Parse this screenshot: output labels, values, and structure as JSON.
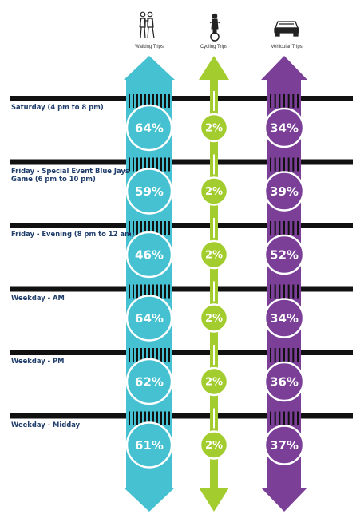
{
  "chart_data": {
    "type": "table",
    "modes": [
      {
        "name": "Walking Trips",
        "icon": "pedestrians-icon",
        "color": "#45c1d1"
      },
      {
        "name": "Cycling Trips",
        "icon": "cyclist-icon",
        "color": "#a3cc2e"
      },
      {
        "name": "Vehicular Trips",
        "icon": "car-icon",
        "color": "#7b3f98"
      }
    ],
    "rows": [
      {
        "label": "Saturday (4 pm to 8 pm)",
        "values": [
          "64%",
          "2%",
          "34%"
        ]
      },
      {
        "label": "Friday - Special Event Blue Jays Game (6 pm to 10 pm)",
        "values": [
          "59%",
          "2%",
          "39%"
        ]
      },
      {
        "label": "Friday - Evening (8 pm to 12 am)",
        "values": [
          "46%",
          "2%",
          "52%"
        ]
      },
      {
        "label": "Weekday - AM",
        "values": [
          "64%",
          "2%",
          "34%"
        ]
      },
      {
        "label": "Weekday - PM",
        "values": [
          "62%",
          "2%",
          "36%"
        ]
      },
      {
        "label": "Weekday - Midday",
        "values": [
          "61%",
          "2%",
          "37%"
        ]
      }
    ],
    "colors": {
      "band": "#111111",
      "label": "#1f3d6b"
    }
  }
}
